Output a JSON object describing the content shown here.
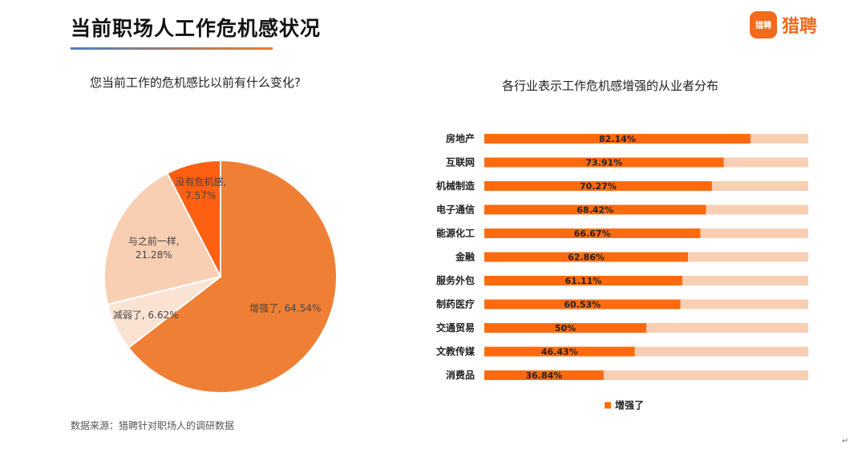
{
  "header": {
    "title": "当前职场人工作危机感状况",
    "logo_mark": "猎聘",
    "logo_text": "猎聘"
  },
  "colors": {
    "accent": "#f36a1c",
    "bar_fill": "#ff6a0f",
    "bar_track": "#f8cfb2",
    "pie_strong": "#ef7f35",
    "pie_weak": "#fbe3d4",
    "pie_same": "#f8cfb2",
    "pie_none": "#fe6012"
  },
  "footer": {
    "source": "数据来源：猎聘针对职场人的调研数据",
    "mark": "↵"
  },
  "chart_data": [
    {
      "type": "pie",
      "title": "您当前工作的危机感比以前有什么变化?",
      "slices": [
        {
          "label": "增强了",
          "value": 64.54,
          "display": "增强了, 64.54%",
          "color": "#ef7f35"
        },
        {
          "label": "减弱了",
          "value": 6.62,
          "display": "减弱了, 6.62%",
          "color": "#fbe3d4"
        },
        {
          "label": "与之前一样",
          "value": 21.28,
          "display_line1": "与之前一样,",
          "display_line2": "21.28%",
          "color": "#f8cfb2"
        },
        {
          "label": "没有危机感",
          "value": 7.57,
          "display_line1": "没有危机感,",
          "display_line2": "7.57%",
          "color": "#fe6012"
        }
      ]
    },
    {
      "type": "bar",
      "orientation": "horizontal",
      "title": "各行业表示工作危机感增强的从业者分布",
      "categories": [
        "房地产",
        "互联网",
        "机械制造",
        "电子通信",
        "能源化工",
        "金融",
        "服务外包",
        "制药医疗",
        "交通贸易",
        "文教传媒",
        "消费品"
      ],
      "series": [
        {
          "name": "增强了",
          "values": [
            82.14,
            73.91,
            70.27,
            68.42,
            66.67,
            62.86,
            61.11,
            60.53,
            50,
            46.43,
            36.84
          ]
        }
      ],
      "value_labels": [
        "82.14%",
        "73.91%",
        "70.27%",
        "68.42%",
        "66.67%",
        "62.86%",
        "61.11%",
        "60.53%",
        "50%",
        "46.43%",
        "36.84%"
      ],
      "xlim": [
        0,
        100
      ],
      "legend": "bottom"
    }
  ]
}
